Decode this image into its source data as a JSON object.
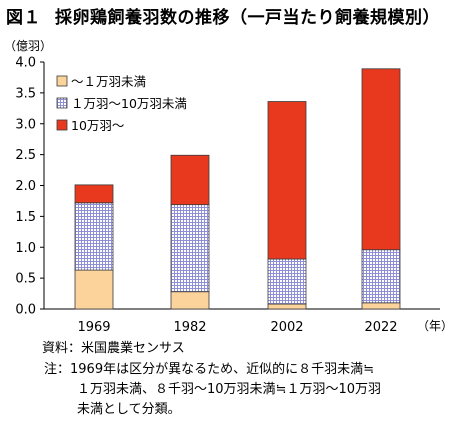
{
  "title": {
    "number": "図１",
    "text": "採卵鶏飼養羽数の推移（一戸当たり飼養規模別）"
  },
  "chart_data": {
    "type": "bar",
    "stacked": true,
    "categories": [
      "1969",
      "1982",
      "2002",
      "2022"
    ],
    "series": [
      {
        "name": "～１万羽未満",
        "values": [
          0.63,
          0.28,
          0.08,
          0.1
        ]
      },
      {
        "name": "１万羽～10万羽未満",
        "values": [
          1.09,
          1.41,
          0.73,
          0.86
        ]
      },
      {
        "name": "10万羽～",
        "values": [
          0.29,
          0.8,
          2.55,
          2.93
        ]
      }
    ],
    "ylabel": "（億羽）",
    "xlabel": "（年）",
    "ylim": [
      0,
      4.0
    ],
    "yticks": [
      "0.0",
      "0.5",
      "1.0",
      "1.5",
      "2.0",
      "2.5",
      "3.0",
      "3.5",
      "4.0"
    ],
    "grid": false,
    "legend_placement": "top-left",
    "colors": {
      "series0": "#fbd39b",
      "series1": "#8f8fd8",
      "series2": "#e8391e",
      "bar_edge": "#3a3a3a"
    }
  },
  "footnotes": {
    "source_label": "資料：",
    "source_text": "米国農業センサス",
    "note_label": "注：",
    "note_lines": [
      "1969年は区分が異なるため、近似的に８千羽未満≒",
      "１万羽未満、８千羽～10万羽未満≒１万羽～10万羽",
      "未満として分類。"
    ]
  }
}
